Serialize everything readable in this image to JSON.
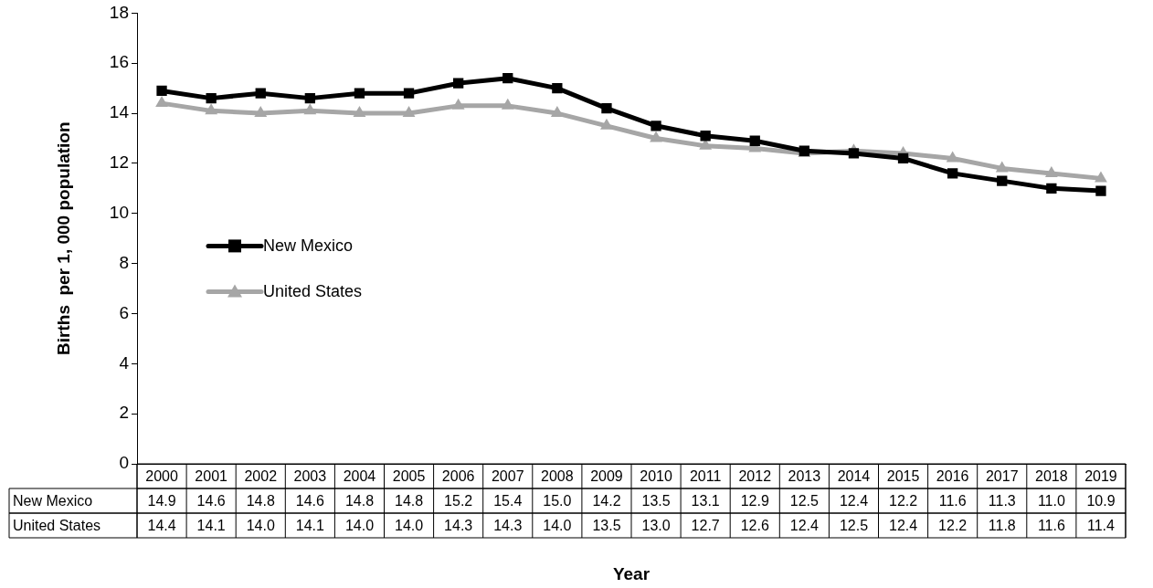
{
  "chart_data": {
    "type": "line",
    "xlabel": "Year",
    "ylabel": "Births  per 1, 000 population",
    "categories": [
      "2000",
      "2001",
      "2002",
      "2003",
      "2004",
      "2005",
      "2006",
      "2007",
      "2008",
      "2009",
      "2010",
      "2011",
      "2012",
      "2013",
      "2014",
      "2015",
      "2016",
      "2017",
      "2018",
      "2019"
    ],
    "series": [
      {
        "name": "New Mexico",
        "color": "#000000",
        "marker": "square",
        "values": [
          14.9,
          14.6,
          14.8,
          14.6,
          14.8,
          14.8,
          15.2,
          15.4,
          15.0,
          14.2,
          13.5,
          13.1,
          12.9,
          12.5,
          12.4,
          12.2,
          11.6,
          11.3,
          11.0,
          10.9
        ],
        "value_labels": [
          "14.9",
          "14.6",
          "14.8",
          "14.6",
          "14.8",
          "14.8",
          "15.2",
          "15.4",
          "15.0",
          "14.2",
          "13.5",
          "13.1",
          "12.9",
          "12.5",
          "12.4",
          "12.2",
          "11.6",
          "11.3",
          "11.0",
          "10.9"
        ]
      },
      {
        "name": "United States",
        "color": "#a6a6a6",
        "marker": "triangle",
        "values": [
          14.4,
          14.1,
          14.0,
          14.1,
          14.0,
          14.0,
          14.3,
          14.3,
          14.0,
          13.5,
          13.0,
          12.7,
          12.6,
          12.4,
          12.5,
          12.4,
          12.2,
          11.8,
          11.6,
          11.4
        ],
        "value_labels": [
          "14.4",
          "14.1",
          "14.0",
          "14.1",
          "14.0",
          "14.0",
          "14.3",
          "14.3",
          "14.0",
          "13.5",
          "13.0",
          "12.7",
          "12.6",
          "12.4",
          "12.5",
          "12.4",
          "12.2",
          "11.8",
          "11.6",
          "11.4"
        ]
      }
    ],
    "ylim": [
      0,
      18
    ],
    "yticks": [
      0,
      2,
      4,
      6,
      8,
      10,
      12,
      14,
      16,
      18
    ],
    "grid": false,
    "legend": "left"
  }
}
